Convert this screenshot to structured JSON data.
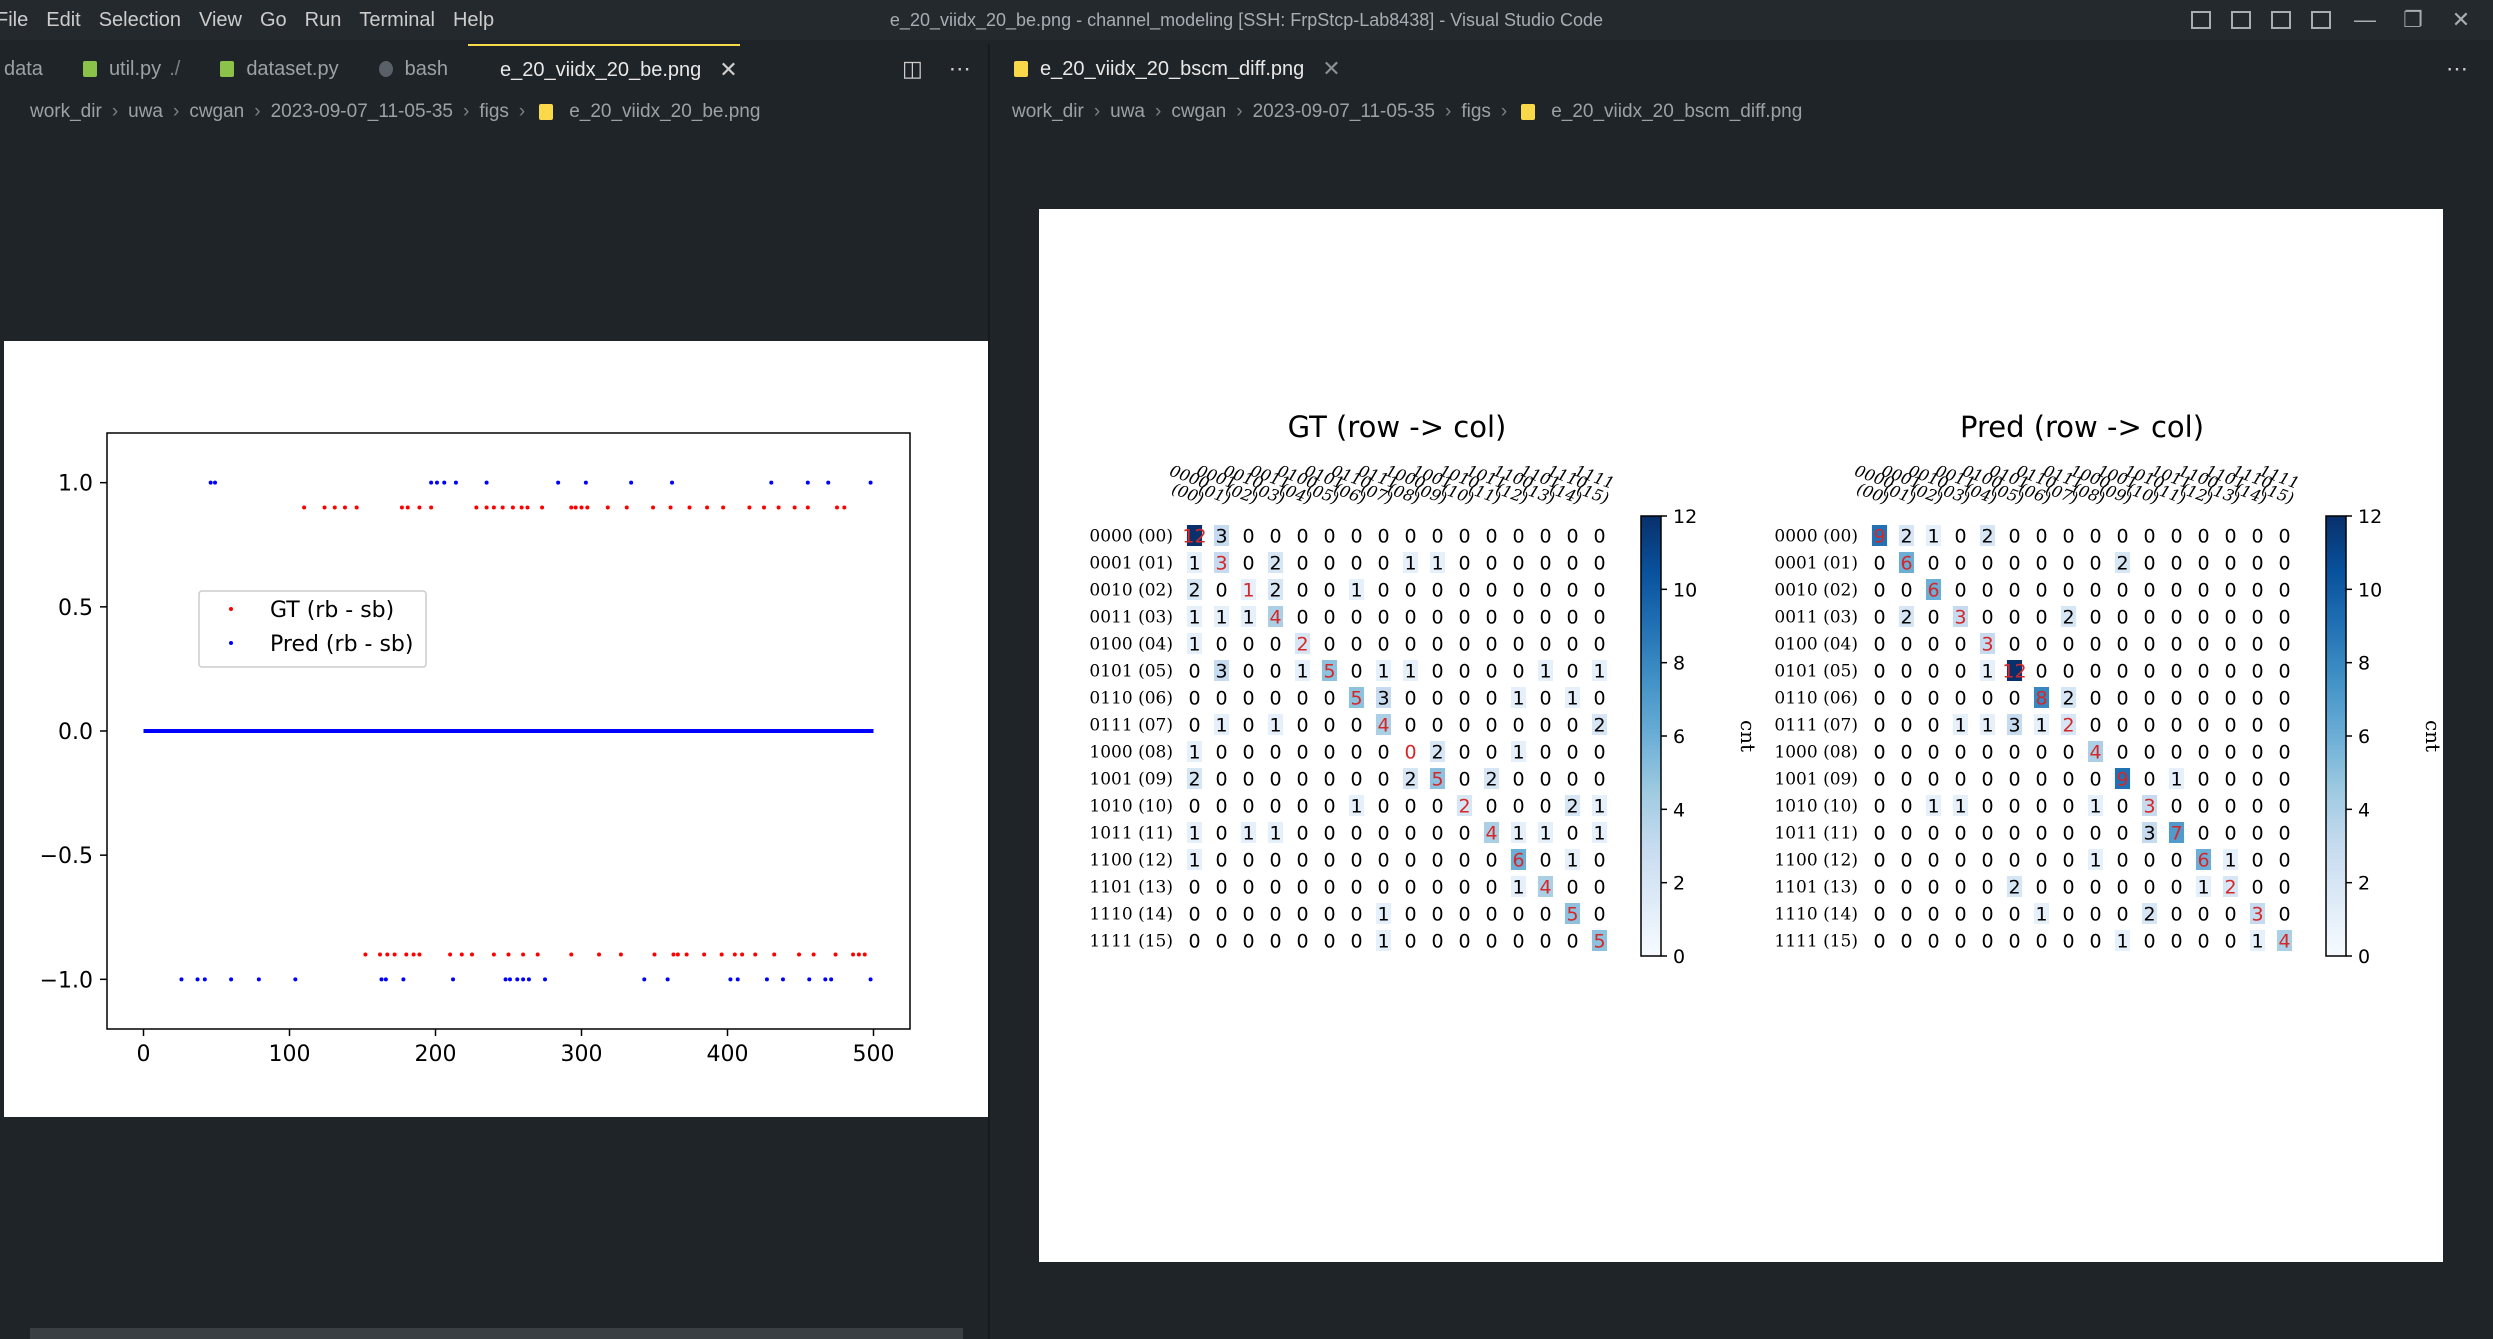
{
  "menu": [
    "File",
    "Edit",
    "Selection",
    "View",
    "Go",
    "Run",
    "Terminal",
    "Help"
  ],
  "window_title": "e_20_viidx_20_be.png - channel_modeling [SSH: FrpStcp-Lab8438] - Visual Studio Code",
  "left_tabs": [
    {
      "label": "data",
      "icon": "folder"
    },
    {
      "label": "util.py",
      "suffix": "./",
      "icon": "python-icon"
    },
    {
      "label": "dataset.py",
      "icon": "python-icon"
    },
    {
      "label": "bash",
      "icon": "terminal-icon"
    },
    {
      "label": "e_20_viidx_20_be.png",
      "icon": "image-icon",
      "active": true
    }
  ],
  "right_tabs": [
    {
      "label": "e_20_viidx_20_bscm_diff.png",
      "icon": "image-icon",
      "active": true
    }
  ],
  "left_breadcrumbs": [
    "work_dir",
    "uwa",
    "cwgan",
    "2023-09-07_11-05-35",
    "figs",
    "e_20_viidx_20_be.png"
  ],
  "right_breadcrumbs": [
    "work_dir",
    "uwa",
    "cwgan",
    "2023-09-07_11-05-35",
    "figs",
    "e_20_viidx_20_bscm_diff.png"
  ],
  "colors": {
    "gt": "#ff0000",
    "pred": "#0000ff",
    "accent": "#f9d849",
    "cmap_dark": "#08306b",
    "diag_red": "#d62728"
  },
  "chart_data": [
    {
      "type": "scatter",
      "xlim": [
        -25,
        525
      ],
      "ylim": [
        -1.2,
        1.2
      ],
      "xticks": [
        "0",
        "100",
        "200",
        "300",
        "400",
        "500"
      ],
      "yticks": [
        "1.0",
        "0.5",
        "0.0",
        "−0.5",
        "−1.0"
      ],
      "legend": {
        "placement": "center-left",
        "entries": [
          "GT (rb - sb)",
          "Pred (rb - sb)"
        ]
      },
      "series": [
        {
          "name": "GT (rb - sb)",
          "y_level_pos": 0.9,
          "y_level_neg": -0.9,
          "pos_x": [
            110,
            124,
            131,
            138,
            146,
            177,
            181,
            189,
            197,
            228,
            235,
            240,
            246,
            253,
            259,
            263,
            273,
            293,
            296,
            300,
            304,
            318,
            331,
            349,
            361,
            374,
            386,
            397,
            415,
            425,
            435,
            446,
            455,
            475,
            480
          ],
          "neg_x": [
            152,
            162,
            167,
            172,
            180,
            185,
            189,
            210,
            218,
            225,
            240,
            250,
            260,
            270,
            293,
            312,
            327,
            350,
            363,
            366,
            372,
            384,
            396,
            405,
            410,
            419,
            432,
            449,
            459,
            474,
            486,
            490,
            494
          ]
        },
        {
          "name": "Pred (rb - sb)",
          "y_level_pos": 1.0,
          "y_level_neg": -1.0,
          "pos_x": [
            46,
            49,
            197,
            201,
            206,
            214,
            235,
            284,
            303,
            334,
            362,
            430,
            455,
            469,
            498
          ],
          "neg_x": [
            26,
            37,
            42,
            60,
            79,
            104,
            163,
            166,
            178,
            212,
            248,
            251,
            256,
            260,
            264,
            275,
            343,
            359,
            402,
            407,
            427,
            438,
            456,
            467,
            471,
            498
          ]
        },
        {
          "name": "zero",
          "y": 0.0,
          "x_range": [
            0,
            500
          ]
        }
      ]
    },
    {
      "type": "heatmap",
      "title": "GT (row -> col)",
      "colorbar": {
        "label": "cnt",
        "ticks": [
          "0",
          "2",
          "4",
          "6",
          "8",
          "10",
          "12"
        ],
        "max": 12
      },
      "row_labels": [
        "0000  (00)",
        "0001  (01)",
        "0010  (02)",
        "0011  (03)",
        "0100  (04)",
        "0101  (05)",
        "0110  (06)",
        "0111  (07)",
        "1000  (08)",
        "1001  (09)",
        "1010  (10)",
        "1011  (11)",
        "1100  (12)",
        "1101  (13)",
        "1110  (14)",
        "1111  (15)"
      ],
      "col_labels": [
        "0000\n(00)",
        "0001\n(01)",
        "0010\n(02)",
        "0011\n(03)",
        "0100\n(04)",
        "0101\n(05)",
        "0110\n(06)",
        "0111\n(07)",
        "1000\n(08)",
        "1001\n(09)",
        "1010\n(10)",
        "1011\n(11)",
        "1100\n(12)",
        "1101\n(13)",
        "1110\n(14)",
        "1111\n(15)"
      ],
      "matrix": [
        [
          12,
          3,
          0,
          0,
          0,
          0,
          0,
          0,
          0,
          0,
          0,
          0,
          0,
          0,
          0,
          0
        ],
        [
          1,
          3,
          0,
          2,
          0,
          0,
          0,
          0,
          1,
          1,
          0,
          0,
          0,
          0,
          0,
          0
        ],
        [
          2,
          0,
          1,
          2,
          0,
          0,
          1,
          0,
          0,
          0,
          0,
          0,
          0,
          0,
          0,
          0
        ],
        [
          1,
          1,
          1,
          4,
          0,
          0,
          0,
          0,
          0,
          0,
          0,
          0,
          0,
          0,
          0,
          0
        ],
        [
          1,
          0,
          0,
          0,
          2,
          0,
          0,
          0,
          0,
          0,
          0,
          0,
          0,
          0,
          0,
          0
        ],
        [
          0,
          3,
          0,
          0,
          1,
          5,
          0,
          1,
          1,
          0,
          0,
          0,
          0,
          1,
          0,
          1
        ],
        [
          0,
          0,
          0,
          0,
          0,
          0,
          5,
          3,
          0,
          0,
          0,
          0,
          1,
          0,
          1,
          0
        ],
        [
          0,
          1,
          0,
          1,
          0,
          0,
          0,
          4,
          0,
          0,
          0,
          0,
          0,
          0,
          0,
          2
        ],
        [
          1,
          0,
          0,
          0,
          0,
          0,
          0,
          0,
          0,
          2,
          0,
          0,
          1,
          0,
          0,
          0
        ],
        [
          2,
          0,
          0,
          0,
          0,
          0,
          0,
          0,
          2,
          5,
          0,
          2,
          0,
          0,
          0,
          0
        ],
        [
          0,
          0,
          0,
          0,
          0,
          0,
          1,
          0,
          0,
          0,
          2,
          0,
          0,
          0,
          2,
          1
        ],
        [
          1,
          0,
          1,
          1,
          0,
          0,
          0,
          0,
          0,
          0,
          0,
          4,
          1,
          1,
          0,
          1
        ],
        [
          1,
          0,
          0,
          0,
          0,
          0,
          0,
          0,
          0,
          0,
          0,
          0,
          6,
          0,
          1,
          0
        ],
        [
          0,
          0,
          0,
          0,
          0,
          0,
          0,
          0,
          0,
          0,
          0,
          0,
          1,
          4,
          0,
          0
        ],
        [
          0,
          0,
          0,
          0,
          0,
          0,
          0,
          1,
          0,
          0,
          0,
          0,
          0,
          0,
          5,
          0
        ],
        [
          0,
          0,
          0,
          0,
          0,
          0,
          0,
          1,
          0,
          0,
          0,
          0,
          0,
          0,
          0,
          5
        ]
      ]
    },
    {
      "type": "heatmap",
      "title": "Pred (row -> col)",
      "colorbar": {
        "label": "cnt",
        "ticks": [
          "0",
          "2",
          "4",
          "6",
          "8",
          "10",
          "12"
        ],
        "max": 12
      },
      "row_labels": [
        "0000  (00)",
        "0001  (01)",
        "0010  (02)",
        "0011  (03)",
        "0100  (04)",
        "0101  (05)",
        "0110  (06)",
        "0111  (07)",
        "1000  (08)",
        "1001  (09)",
        "1010  (10)",
        "1011  (11)",
        "1100  (12)",
        "1101  (13)",
        "1110  (14)",
        "1111  (15)"
      ],
      "col_labels": [
        "0000\n(00)",
        "0001\n(01)",
        "0010\n(02)",
        "0011\n(03)",
        "0100\n(04)",
        "0101\n(05)",
        "0110\n(06)",
        "0111\n(07)",
        "1000\n(08)",
        "1001\n(09)",
        "1010\n(10)",
        "1011\n(11)",
        "1100\n(12)",
        "1101\n(13)",
        "1110\n(14)",
        "1111\n(15)"
      ],
      "matrix": [
        [
          9,
          2,
          1,
          0,
          2,
          0,
          0,
          0,
          0,
          0,
          0,
          0,
          0,
          0,
          0,
          0
        ],
        [
          0,
          6,
          0,
          0,
          0,
          0,
          0,
          0,
          0,
          2,
          0,
          0,
          0,
          0,
          0,
          0
        ],
        [
          0,
          0,
          6,
          0,
          0,
          0,
          0,
          0,
          0,
          0,
          0,
          0,
          0,
          0,
          0,
          0
        ],
        [
          0,
          2,
          0,
          3,
          0,
          0,
          0,
          2,
          0,
          0,
          0,
          0,
          0,
          0,
          0,
          0
        ],
        [
          0,
          0,
          0,
          0,
          3,
          0,
          0,
          0,
          0,
          0,
          0,
          0,
          0,
          0,
          0,
          0
        ],
        [
          0,
          0,
          0,
          0,
          1,
          12,
          0,
          0,
          0,
          0,
          0,
          0,
          0,
          0,
          0,
          0
        ],
        [
          0,
          0,
          0,
          0,
          0,
          0,
          8,
          2,
          0,
          0,
          0,
          0,
          0,
          0,
          0,
          0
        ],
        [
          0,
          0,
          0,
          1,
          1,
          3,
          1,
          2,
          0,
          0,
          0,
          0,
          0,
          0,
          0,
          0
        ],
        [
          0,
          0,
          0,
          0,
          0,
          0,
          0,
          0,
          4,
          0,
          0,
          0,
          0,
          0,
          0,
          0
        ],
        [
          0,
          0,
          0,
          0,
          0,
          0,
          0,
          0,
          0,
          9,
          0,
          1,
          0,
          0,
          0,
          0
        ],
        [
          0,
          0,
          1,
          1,
          0,
          0,
          0,
          0,
          1,
          0,
          3,
          0,
          0,
          0,
          0,
          0
        ],
        [
          0,
          0,
          0,
          0,
          0,
          0,
          0,
          0,
          0,
          0,
          3,
          7,
          0,
          0,
          0,
          0
        ],
        [
          0,
          0,
          0,
          0,
          0,
          0,
          0,
          0,
          1,
          0,
          0,
          0,
          6,
          1,
          0,
          0
        ],
        [
          0,
          0,
          0,
          0,
          0,
          2,
          0,
          0,
          0,
          0,
          0,
          0,
          1,
          2,
          0,
          0
        ],
        [
          0,
          0,
          0,
          0,
          0,
          0,
          1,
          0,
          0,
          0,
          2,
          0,
          0,
          0,
          3,
          0
        ],
        [
          0,
          0,
          0,
          0,
          0,
          0,
          0,
          0,
          0,
          1,
          0,
          0,
          0,
          0,
          1,
          4
        ]
      ]
    }
  ]
}
